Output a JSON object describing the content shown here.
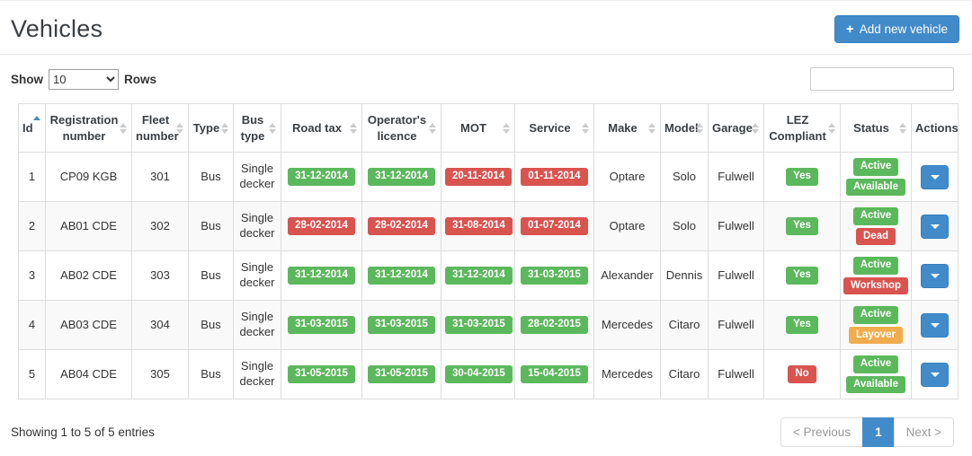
{
  "page": {
    "title": "Vehicles"
  },
  "toolbar": {
    "add_icon": "+",
    "add_button_label": "Add new vehicle"
  },
  "controls": {
    "show_label": "Show",
    "rows_label": "Rows",
    "page_size": "10",
    "search_value": ""
  },
  "colors": {
    "primary": "#428bca",
    "success": "#5cb85c",
    "danger": "#d9534f",
    "warning": "#f0ad4e"
  },
  "table": {
    "columns": [
      {
        "label": "Id",
        "sort": "asc"
      },
      {
        "label": "Registration number",
        "sort": "both"
      },
      {
        "label": "Fleet number",
        "sort": "both"
      },
      {
        "label": "Type",
        "sort": "both"
      },
      {
        "label": "Bus type",
        "sort": "both"
      },
      {
        "label": "Road tax",
        "sort": "both"
      },
      {
        "label": "Operator's licence",
        "sort": "both"
      },
      {
        "label": "MOT",
        "sort": "both"
      },
      {
        "label": "Service",
        "sort": "both"
      },
      {
        "label": "Make",
        "sort": "both"
      },
      {
        "label": "Model",
        "sort": "both"
      },
      {
        "label": "Garage",
        "sort": "both"
      },
      {
        "label": "LEZ Compliant",
        "sort": "both"
      },
      {
        "label": "Status",
        "sort": "both"
      },
      {
        "label": "Actions",
        "sort": "none"
      }
    ],
    "rows": [
      {
        "id": "1",
        "registration": "CP09 KGB",
        "fleet": "301",
        "type": "Bus",
        "bus_type": "Single decker",
        "road_tax": {
          "text": "31-12-2014",
          "state": "success"
        },
        "operators_licence": {
          "text": "31-12-2014",
          "state": "success"
        },
        "mot": {
          "text": "20-11-2014",
          "state": "danger"
        },
        "service": {
          "text": "01-11-2014",
          "state": "danger"
        },
        "make": "Optare",
        "model": "Solo",
        "garage": "Fulwell",
        "lez": {
          "text": "Yes",
          "state": "success"
        },
        "status": [
          {
            "text": "Active",
            "state": "success"
          },
          {
            "text": "Available",
            "state": "success"
          }
        ]
      },
      {
        "id": "2",
        "registration": "AB01 CDE",
        "fleet": "302",
        "type": "Bus",
        "bus_type": "Single decker",
        "road_tax": {
          "text": "28-02-2014",
          "state": "danger"
        },
        "operators_licence": {
          "text": "28-02-2014",
          "state": "danger"
        },
        "mot": {
          "text": "31-08-2014",
          "state": "danger"
        },
        "service": {
          "text": "01-07-2014",
          "state": "danger"
        },
        "make": "Optare",
        "model": "Solo",
        "garage": "Fulwell",
        "lez": {
          "text": "Yes",
          "state": "success"
        },
        "status": [
          {
            "text": "Active",
            "state": "success"
          },
          {
            "text": "Dead",
            "state": "danger"
          }
        ]
      },
      {
        "id": "3",
        "registration": "AB02 CDE",
        "fleet": "303",
        "type": "Bus",
        "bus_type": "Single decker",
        "road_tax": {
          "text": "31-12-2014",
          "state": "success"
        },
        "operators_licence": {
          "text": "31-12-2014",
          "state": "success"
        },
        "mot": {
          "text": "31-12-2014",
          "state": "success"
        },
        "service": {
          "text": "31-03-2015",
          "state": "success"
        },
        "make": "Alexander",
        "model": "Dennis",
        "garage": "Fulwell",
        "lez": {
          "text": "Yes",
          "state": "success"
        },
        "status": [
          {
            "text": "Active",
            "state": "success"
          },
          {
            "text": "Workshop",
            "state": "danger"
          }
        ]
      },
      {
        "id": "4",
        "registration": "AB03 CDE",
        "fleet": "304",
        "type": "Bus",
        "bus_type": "Single decker",
        "road_tax": {
          "text": "31-03-2015",
          "state": "success"
        },
        "operators_licence": {
          "text": "31-03-2015",
          "state": "success"
        },
        "mot": {
          "text": "31-03-2015",
          "state": "success"
        },
        "service": {
          "text": "28-02-2015",
          "state": "success"
        },
        "make": "Mercedes",
        "model": "Citaro",
        "garage": "Fulwell",
        "lez": {
          "text": "Yes",
          "state": "success"
        },
        "status": [
          {
            "text": "Active",
            "state": "success"
          },
          {
            "text": "Layover",
            "state": "warning"
          }
        ]
      },
      {
        "id": "5",
        "registration": "AB04 CDE",
        "fleet": "305",
        "type": "Bus",
        "bus_type": "Single decker",
        "road_tax": {
          "text": "31-05-2015",
          "state": "success"
        },
        "operators_licence": {
          "text": "31-05-2015",
          "state": "success"
        },
        "mot": {
          "text": "30-04-2015",
          "state": "success"
        },
        "service": {
          "text": "15-04-2015",
          "state": "success"
        },
        "make": "Mercedes",
        "model": "Citaro",
        "garage": "Fulwell",
        "lez": {
          "text": "No",
          "state": "danger"
        },
        "status": [
          {
            "text": "Active",
            "state": "success"
          },
          {
            "text": "Available",
            "state": "success"
          }
        ]
      }
    ]
  },
  "footer": {
    "summary": "Showing 1 to 5 of 5 entries",
    "pagination": {
      "previous": "< Previous",
      "page": "1",
      "next": "Next >"
    }
  }
}
